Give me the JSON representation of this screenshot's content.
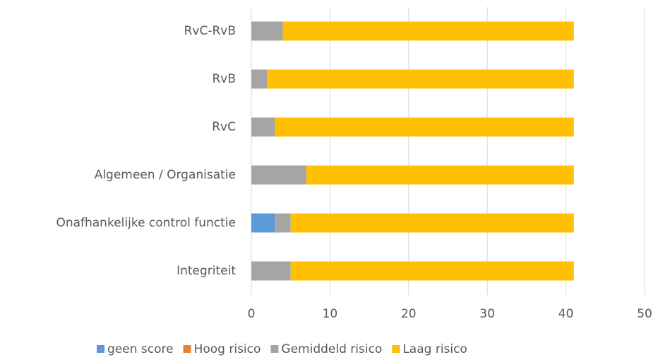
{
  "chart_data": {
    "type": "stacked_barh",
    "categories": [
      "RvC-RvB",
      "RvB",
      "RvC",
      "Algemeen / Organisatie",
      "Onafhankelijke control functie",
      "Integriteit"
    ],
    "series": [
      {
        "name": "geen score",
        "color": "#5b9bd5",
        "values": [
          0,
          0,
          0,
          0,
          3,
          0
        ]
      },
      {
        "name": "Hoog risico",
        "color": "#ed7d31",
        "values": [
          0,
          0,
          0,
          0,
          0,
          0
        ]
      },
      {
        "name": "Gemiddeld risico",
        "color": "#a5a5a5",
        "values": [
          4,
          2,
          3,
          7,
          2,
          5
        ]
      },
      {
        "name": "Laag risico",
        "color": "#ffc000",
        "values": [
          37,
          39,
          38,
          34,
          36,
          36
        ]
      }
    ],
    "xlim": [
      0,
      50
    ],
    "xticks": [
      0,
      10,
      20,
      30,
      40,
      50
    ],
    "grid": true,
    "legend": "bottom"
  }
}
